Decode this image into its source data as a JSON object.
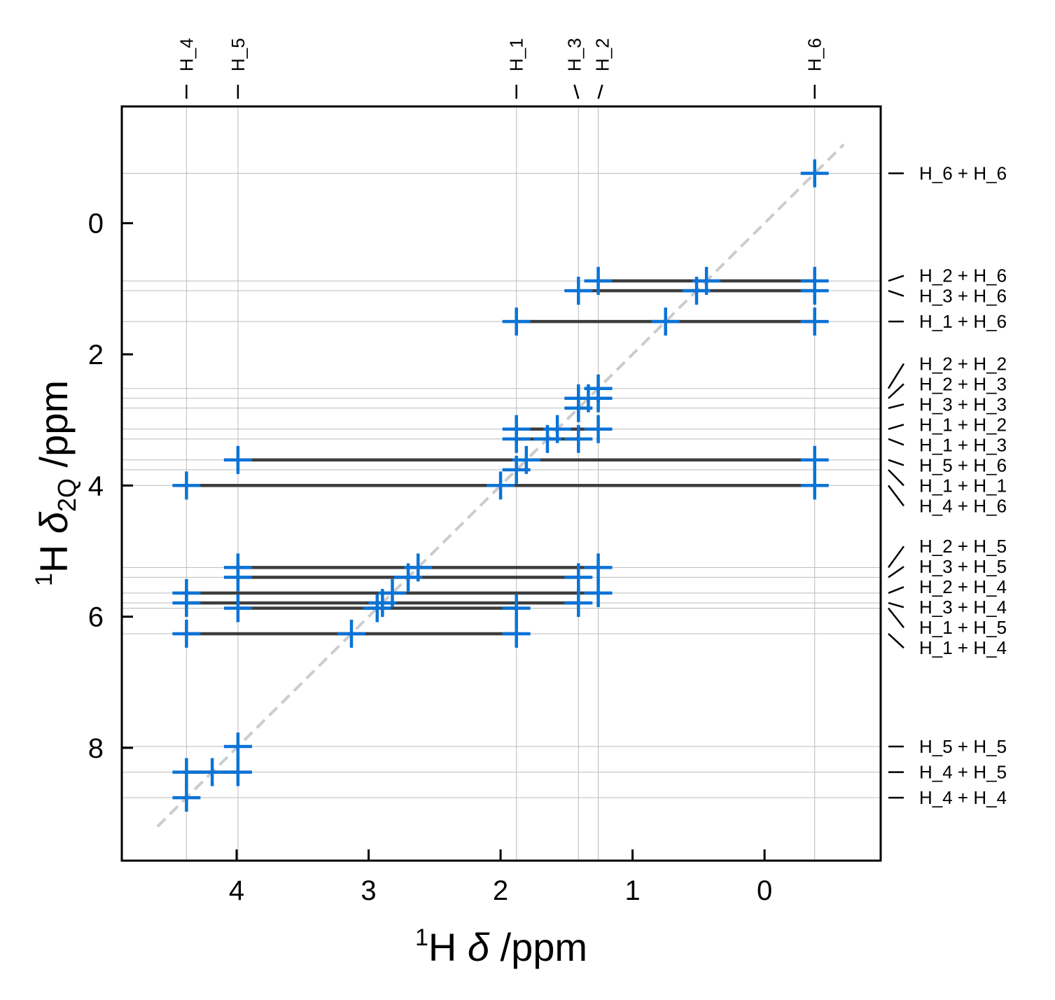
{
  "chart_data": {
    "type": "scatter",
    "xlabel": {
      "sup": "1",
      "main": "H ",
      "delta": "δ",
      "rest": " /ppm"
    },
    "ylabel": {
      "sup": "1",
      "main": "H ",
      "delta": "δ",
      "sub": "2Q",
      "rest": " /ppm"
    },
    "xlim": [
      4.87,
      -0.88
    ],
    "ylim": [
      9.72,
      -1.78
    ],
    "x_ticks": [
      4,
      3,
      2,
      1,
      0
    ],
    "x_tick_labels": [
      "4",
      "3",
      "2",
      "1",
      "0"
    ],
    "y_ticks": [
      0,
      2,
      4,
      6,
      8
    ],
    "y_tick_labels": [
      "0",
      "2",
      "4",
      "6",
      "8"
    ],
    "grid": true,
    "diagonal": {
      "from": [
        4.6,
        9.2
      ],
      "to": [
        -0.6,
        -1.2
      ],
      "style": "dashed",
      "color": "#cccccc"
    },
    "marker_color": "#0a73d7",
    "connector_color": "#3d3d3d",
    "grid_color": "#bbbbbb",
    "peaks": [
      {
        "label": "H_1",
        "shift": 1.88
      },
      {
        "label": "H_2",
        "shift": 1.26
      },
      {
        "label": "H_3",
        "shift": 1.41
      },
      {
        "label": "H_4",
        "shift": 4.38
      },
      {
        "label": "H_5",
        "shift": 3.99
      },
      {
        "label": "H_6",
        "shift": -0.38
      }
    ],
    "pairs": [
      {
        "label": "H_6 + H_6",
        "a": "H_6",
        "b": "H_6"
      },
      {
        "label": "H_2 + H_6",
        "a": "H_2",
        "b": "H_6"
      },
      {
        "label": "H_3 + H_6",
        "a": "H_3",
        "b": "H_6"
      },
      {
        "label": "H_1 + H_6",
        "a": "H_1",
        "b": "H_6"
      },
      {
        "label": "H_2 + H_2",
        "a": "H_2",
        "b": "H_2"
      },
      {
        "label": "H_2 + H_3",
        "a": "H_2",
        "b": "H_3"
      },
      {
        "label": "H_3 + H_3",
        "a": "H_3",
        "b": "H_3"
      },
      {
        "label": "H_1 + H_2",
        "a": "H_1",
        "b": "H_2"
      },
      {
        "label": "H_1 + H_3",
        "a": "H_1",
        "b": "H_3"
      },
      {
        "label": "H_5 + H_6",
        "a": "H_5",
        "b": "H_6"
      },
      {
        "label": "H_1 + H_1",
        "a": "H_1",
        "b": "H_1"
      },
      {
        "label": "H_4 + H_6",
        "a": "H_4",
        "b": "H_6"
      },
      {
        "label": "H_2 + H_5",
        "a": "H_2",
        "b": "H_5"
      },
      {
        "label": "H_3 + H_5",
        "a": "H_3",
        "b": "H_5"
      },
      {
        "label": "H_2 + H_4",
        "a": "H_2",
        "b": "H_4"
      },
      {
        "label": "H_3 + H_4",
        "a": "H_3",
        "b": "H_4"
      },
      {
        "label": "H_1 + H_5",
        "a": "H_1",
        "b": "H_5"
      },
      {
        "label": "H_1 + H_4",
        "a": "H_1",
        "b": "H_4"
      },
      {
        "label": "H_5 + H_5",
        "a": "H_5",
        "b": "H_5"
      },
      {
        "label": "H_4 + H_5",
        "a": "H_4",
        "b": "H_5"
      },
      {
        "label": "H_4 + H_4",
        "a": "H_4",
        "b": "H_4"
      }
    ]
  }
}
